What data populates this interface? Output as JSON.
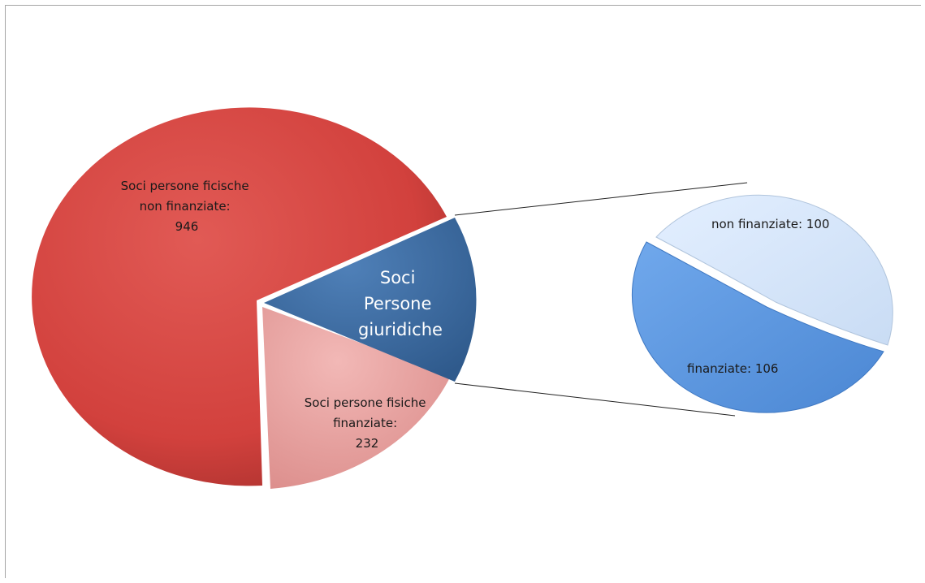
{
  "chart_data": {
    "type": "pie",
    "subtype": "pie-of-pie",
    "main_pie": [
      {
        "label": "Soci persone ficische non finanziate:",
        "value": 946,
        "color": "#d2413d"
      },
      {
        "label": "Soci persone fisiche finanziate:",
        "value": 232,
        "color": "#e9a4a2"
      },
      {
        "label": "Soci Persone giuridiche",
        "value": 206,
        "color": "#3f6ea5"
      }
    ],
    "secondary_pie": [
      {
        "label": "non finanziate: 100",
        "value": 100,
        "color": "#d6e6fa"
      },
      {
        "label": "finanziate: 106",
        "value": 106,
        "color": "#5f9ce5"
      }
    ]
  },
  "labels": {
    "red": [
      "Soci persone ficische",
      "non finanziate:",
      "946"
    ],
    "pink": [
      "Soci persone fisiche",
      "finanziate:",
      "232"
    ],
    "blue": [
      "Soci",
      "Persone",
      "giuridiche"
    ],
    "small_light": "non finanziate: 100",
    "small_dark": "finanziate: 106"
  }
}
